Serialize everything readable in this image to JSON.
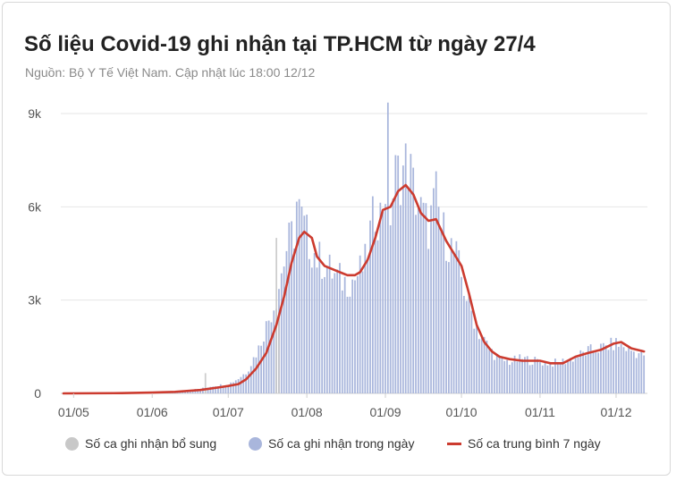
{
  "title": "Số liệu Covid-19 ghi nhận tại TP.HCM từ ngày 27/4",
  "subtitle": "Nguồn: Bộ Y Tế Việt Nam. Cập nhật lúc 18:00 12/12",
  "legend": {
    "supplement": "Số ca ghi nhận bổ sung",
    "daily": "Số ca ghi nhận trong ngày",
    "avg7": "Số ca trung bình 7 ngày"
  },
  "colors": {
    "supplement": "#c8c8c8",
    "daily": "#a9b6dc",
    "avg7": "#cc3b2f",
    "grid": "#e6e6e6",
    "axis_text": "#555555"
  },
  "chart_data": {
    "type": "bar",
    "title": "Số liệu Covid-19 ghi nhận tại TP.HCM từ ngày 27/4",
    "x_start": "2021-04-27",
    "x_end": "2021-12-12",
    "ylim": [
      0,
      9000
    ],
    "y_ticks": [
      {
        "value": 0,
        "label": "0"
      },
      {
        "value": 3000,
        "label": "3k"
      },
      {
        "value": 6000,
        "label": "6k"
      },
      {
        "value": 9000,
        "label": "9k"
      }
    ],
    "x_ticks": [
      {
        "date": "2021-05-01",
        "label": "01/05"
      },
      {
        "date": "2021-06-01",
        "label": "01/06"
      },
      {
        "date": "2021-07-01",
        "label": "01/07"
      },
      {
        "date": "2021-08-01",
        "label": "01/08"
      },
      {
        "date": "2021-09-01",
        "label": "01/09"
      },
      {
        "date": "2021-10-01",
        "label": "01/10"
      },
      {
        "date": "2021-11-01",
        "label": "01/11"
      },
      {
        "date": "2021-12-01",
        "label": "01/12"
      }
    ],
    "grid": true,
    "legend_position": "bottom",
    "series": [
      {
        "name": "Số ca ghi nhận bổ sung",
        "kind": "bar",
        "points": [
          [
            "2021-06-22",
            650
          ],
          [
            "2021-07-20",
            5000
          ],
          [
            "2021-07-21",
            2500
          ]
        ]
      },
      {
        "name": "Số ca ghi nhận trong ngày",
        "kind": "bar",
        "daily_key_points": [
          [
            "2021-04-27",
            0
          ],
          [
            "2021-05-20",
            5
          ],
          [
            "2021-06-01",
            40
          ],
          [
            "2021-06-10",
            70
          ],
          [
            "2021-06-20",
            150
          ],
          [
            "2021-06-25",
            250
          ],
          [
            "2021-07-01",
            300
          ],
          [
            "2021-07-05",
            500
          ],
          [
            "2021-07-08",
            700
          ],
          [
            "2021-07-10",
            1000
          ],
          [
            "2021-07-13",
            1500
          ],
          [
            "2021-07-15",
            2000
          ],
          [
            "2021-07-18",
            2700
          ],
          [
            "2021-07-20",
            3200
          ],
          [
            "2021-07-22",
            4000
          ],
          [
            "2021-07-24",
            4800
          ],
          [
            "2021-07-27",
            5400
          ],
          [
            "2021-07-28",
            6300
          ],
          [
            "2021-07-30",
            5700
          ],
          [
            "2021-08-02",
            5000
          ],
          [
            "2021-08-05",
            4500
          ],
          [
            "2021-08-08",
            4300
          ],
          [
            "2021-08-12",
            3900
          ],
          [
            "2021-08-16",
            3700
          ],
          [
            "2021-08-20",
            3800
          ],
          [
            "2021-08-24",
            4300
          ],
          [
            "2021-08-26",
            5300
          ],
          [
            "2021-08-28",
            6100
          ],
          [
            "2021-08-30",
            5900
          ],
          [
            "2021-09-01",
            6900
          ],
          [
            "2021-09-02",
            8500
          ],
          [
            "2021-09-03",
            6000
          ],
          [
            "2021-09-05",
            7200
          ],
          [
            "2021-09-08",
            7400
          ],
          [
            "2021-09-10",
            7700
          ],
          [
            "2021-09-12",
            6800
          ],
          [
            "2021-09-15",
            6000
          ],
          [
            "2021-09-18",
            5500
          ],
          [
            "2021-09-21",
            6500
          ],
          [
            "2021-09-23",
            5500
          ],
          [
            "2021-09-26",
            5000
          ],
          [
            "2021-09-29",
            4500
          ],
          [
            "2021-10-02",
            3500
          ],
          [
            "2021-10-05",
            2700
          ],
          [
            "2021-10-08",
            2000
          ],
          [
            "2021-10-12",
            1500
          ],
          [
            "2021-10-16",
            1100
          ],
          [
            "2021-10-20",
            1050
          ],
          [
            "2021-10-25",
            1150
          ],
          [
            "2021-11-01",
            1050
          ],
          [
            "2021-11-08",
            1000
          ],
          [
            "2021-11-15",
            1200
          ],
          [
            "2021-11-20",
            1400
          ],
          [
            "2021-11-25",
            1500
          ],
          [
            "2021-12-01",
            1650
          ],
          [
            "2021-12-05",
            1500
          ],
          [
            "2021-12-09",
            1350
          ],
          [
            "2021-12-12",
            1300
          ]
        ]
      },
      {
        "name": "Số ca trung bình 7 ngày",
        "kind": "line",
        "points": [
          [
            "2021-04-27",
            0
          ],
          [
            "2021-05-20",
            10
          ],
          [
            "2021-06-01",
            25
          ],
          [
            "2021-06-10",
            50
          ],
          [
            "2021-06-20",
            110
          ],
          [
            "2021-06-28",
            200
          ],
          [
            "2021-07-01",
            240
          ],
          [
            "2021-07-05",
            300
          ],
          [
            "2021-07-08",
            450
          ],
          [
            "2021-07-12",
            800
          ],
          [
            "2021-07-16",
            1300
          ],
          [
            "2021-07-20",
            2200
          ],
          [
            "2021-07-23",
            3100
          ],
          [
            "2021-07-26",
            4200
          ],
          [
            "2021-07-29",
            5000
          ],
          [
            "2021-07-31",
            5200
          ],
          [
            "2021-08-03",
            5000
          ],
          [
            "2021-08-05",
            4400
          ],
          [
            "2021-08-08",
            4100
          ],
          [
            "2021-08-11",
            4000
          ],
          [
            "2021-08-14",
            3900
          ],
          [
            "2021-08-17",
            3800
          ],
          [
            "2021-08-20",
            3800
          ],
          [
            "2021-08-22",
            3900
          ],
          [
            "2021-08-25",
            4300
          ],
          [
            "2021-08-28",
            5000
          ],
          [
            "2021-08-31",
            5900
          ],
          [
            "2021-09-03",
            6000
          ],
          [
            "2021-09-06",
            6500
          ],
          [
            "2021-09-09",
            6700
          ],
          [
            "2021-09-12",
            6400
          ],
          [
            "2021-09-15",
            5800
          ],
          [
            "2021-09-18",
            5550
          ],
          [
            "2021-09-21",
            5600
          ],
          [
            "2021-09-25",
            4900
          ],
          [
            "2021-09-28",
            4500
          ],
          [
            "2021-10-01",
            4100
          ],
          [
            "2021-10-04",
            3200
          ],
          [
            "2021-10-07",
            2200
          ],
          [
            "2021-10-10",
            1650
          ],
          [
            "2021-10-13",
            1350
          ],
          [
            "2021-10-16",
            1180
          ],
          [
            "2021-10-20",
            1100
          ],
          [
            "2021-10-25",
            1050
          ],
          [
            "2021-11-01",
            1050
          ],
          [
            "2021-11-05",
            970
          ],
          [
            "2021-11-10",
            970
          ],
          [
            "2021-11-15",
            1180
          ],
          [
            "2021-11-20",
            1300
          ],
          [
            "2021-11-25",
            1400
          ],
          [
            "2021-11-30",
            1600
          ],
          [
            "2021-12-03",
            1650
          ],
          [
            "2021-12-07",
            1450
          ],
          [
            "2021-12-12",
            1350
          ]
        ]
      }
    ]
  }
}
